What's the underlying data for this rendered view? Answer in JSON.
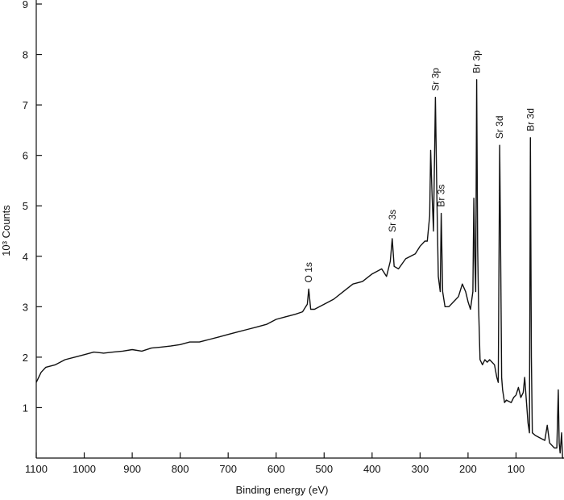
{
  "chart_data": {
    "type": "line",
    "xlabel": "Binding energy (eV)",
    "ylabel": "10³ Counts",
    "xlim": [
      1100,
      0
    ],
    "ylim": [
      0,
      9
    ],
    "xticks": [
      1100,
      1000,
      900,
      800,
      700,
      600,
      500,
      400,
      300,
      200,
      100
    ],
    "yticks": [
      1,
      2,
      3,
      4,
      5,
      6,
      7,
      8,
      9
    ],
    "series": [
      {
        "color": "#111111",
        "x": [
          1100,
          1090,
          1080,
          1060,
          1040,
          1020,
          1000,
          980,
          960,
          940,
          920,
          900,
          880,
          860,
          840,
          820,
          800,
          780,
          760,
          740,
          720,
          700,
          680,
          660,
          640,
          620,
          600,
          580,
          560,
          545,
          535,
          532,
          528,
          520,
          500,
          480,
          460,
          440,
          420,
          400,
          380,
          370,
          362,
          358,
          354,
          345,
          330,
          310,
          300,
          290,
          285,
          280,
          278,
          275,
          272,
          268,
          265,
          262,
          258,
          256,
          253,
          248,
          240,
          230,
          220,
          212,
          205,
          200,
          195,
          190,
          188,
          186,
          184,
          182,
          180,
          178,
          175,
          170,
          165,
          160,
          155,
          150,
          145,
          140,
          137,
          134,
          132,
          130,
          128,
          124,
          120,
          110,
          105,
          100,
          95,
          90,
          85,
          82,
          79,
          75,
          72,
          70,
          68,
          66,
          60,
          50,
          40,
          35,
          30,
          20,
          15,
          12,
          10,
          8,
          5,
          3,
          1
        ],
        "values": [
          1.5,
          1.7,
          1.8,
          1.85,
          1.95,
          2.0,
          2.05,
          2.1,
          2.08,
          2.1,
          2.12,
          2.15,
          2.12,
          2.18,
          2.2,
          2.22,
          2.25,
          2.3,
          2.3,
          2.35,
          2.4,
          2.45,
          2.5,
          2.55,
          2.6,
          2.65,
          2.75,
          2.8,
          2.85,
          2.9,
          3.05,
          3.35,
          2.95,
          2.95,
          3.05,
          3.15,
          3.3,
          3.45,
          3.5,
          3.65,
          3.75,
          3.6,
          3.9,
          4.35,
          3.8,
          3.75,
          3.95,
          4.05,
          4.2,
          4.3,
          4.3,
          4.8,
          6.1,
          5.2,
          4.5,
          7.15,
          5.2,
          3.6,
          3.3,
          4.85,
          3.3,
          3.0,
          3.0,
          3.1,
          3.2,
          3.45,
          3.3,
          3.1,
          2.95,
          3.3,
          5.15,
          4.0,
          3.3,
          7.5,
          4.2,
          3.0,
          1.95,
          1.85,
          1.95,
          1.9,
          1.95,
          1.9,
          1.85,
          1.6,
          1.5,
          6.2,
          4.0,
          1.6,
          1.35,
          1.1,
          1.15,
          1.1,
          1.2,
          1.25,
          1.4,
          1.2,
          1.3,
          1.6,
          1.2,
          0.7,
          0.5,
          6.35,
          2.0,
          0.5,
          0.45,
          0.4,
          0.35,
          0.65,
          0.3,
          0.2,
          0.2,
          1.35,
          0.3,
          0.1,
          0.5,
          0.0,
          0.0
        ]
      }
    ],
    "annotations": [
      {
        "text": "O 1s",
        "x": 532,
        "y": 3.35
      },
      {
        "text": "Sr 3s",
        "x": 358,
        "y": 4.35
      },
      {
        "text": "Sr 3p",
        "x": 268,
        "y": 7.15
      },
      {
        "text": "Br 3s",
        "x": 256,
        "y": 4.85
      },
      {
        "text": "Br 3p",
        "x": 182,
        "y": 7.5
      },
      {
        "text": "Sr 3d",
        "x": 134,
        "y": 6.2
      },
      {
        "text": "Br 3d",
        "x": 70,
        "y": 6.35
      }
    ]
  }
}
